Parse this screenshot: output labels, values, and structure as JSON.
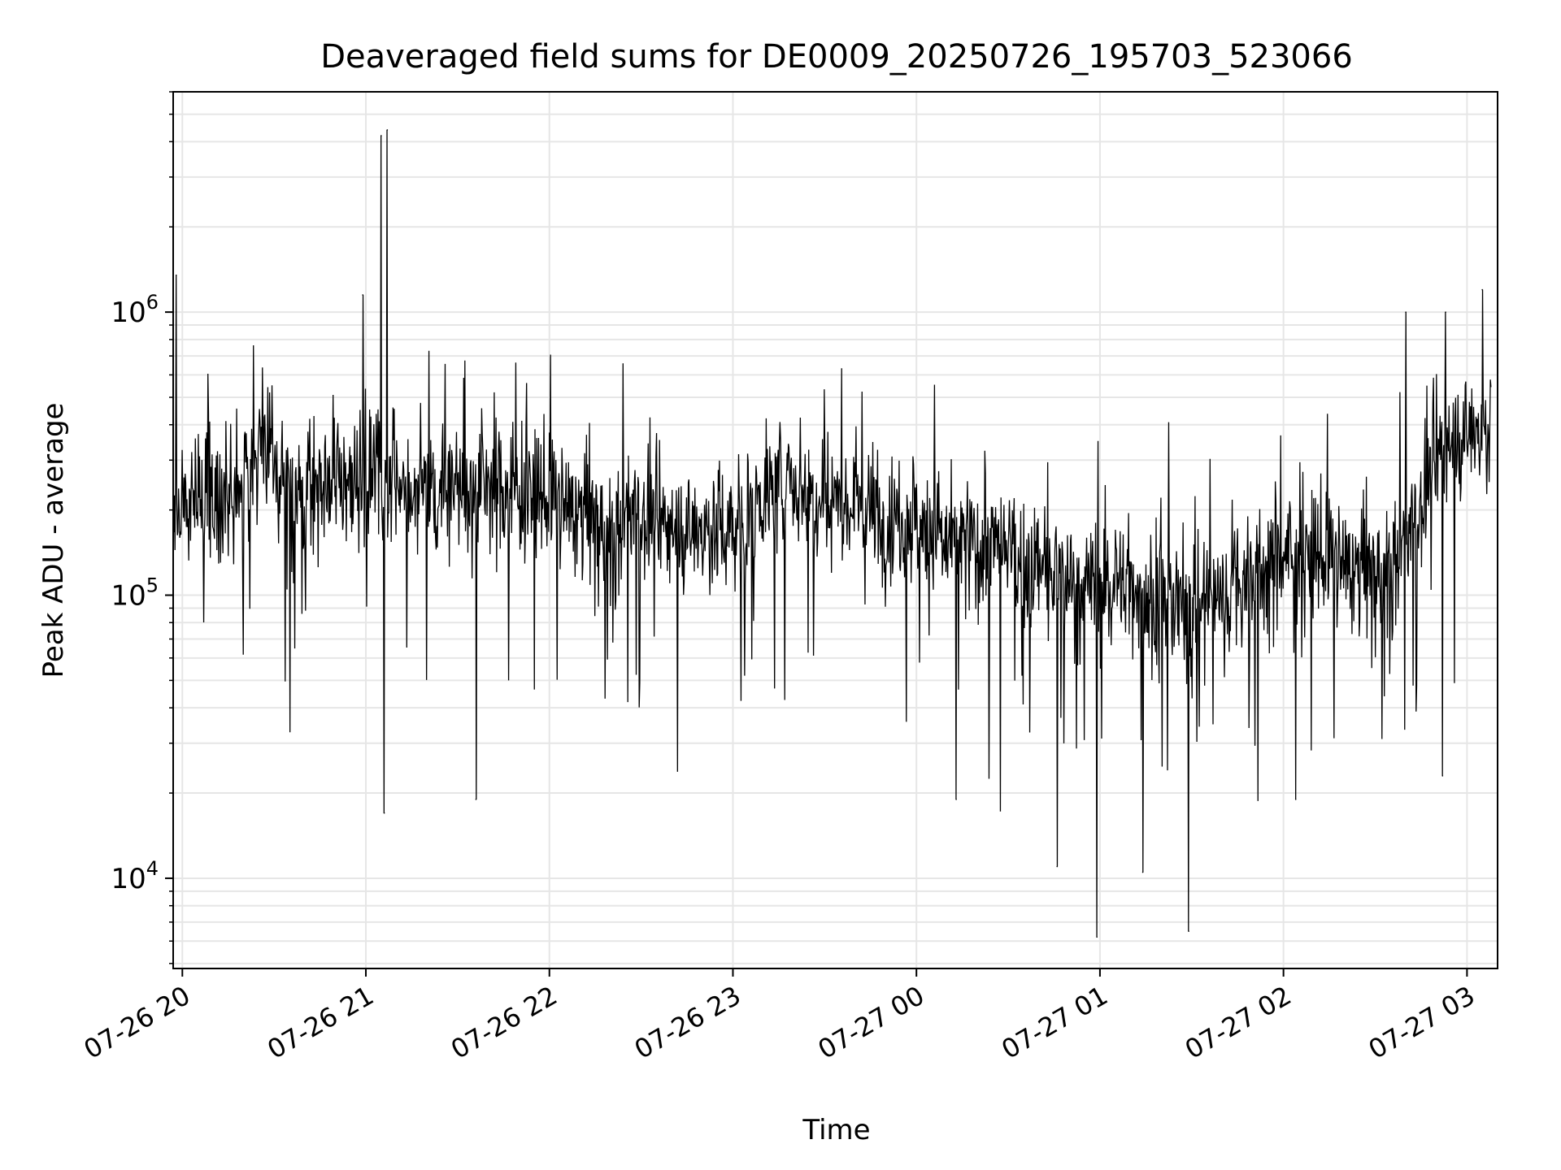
{
  "chart_data": {
    "type": "line",
    "title": "Deaveraged field sums for DE0009_20250726_195703_523066",
    "xlabel": "Time",
    "ylabel": "Peak ADU - average",
    "yscale": "log",
    "ylim": [
      4800,
      6000000
    ],
    "xlim": [
      "2025-07-26T19:57:00",
      "2025-07-27T03:10:00"
    ],
    "grid": true,
    "line_color": "#000000",
    "grid_color": "#e6e6e6",
    "x_ticks": [
      {
        "value": "2025-07-26T20:00:00",
        "label": "07-26 20"
      },
      {
        "value": "2025-07-26T21:00:00",
        "label": "07-26 21"
      },
      {
        "value": "2025-07-26T22:00:00",
        "label": "07-26 22"
      },
      {
        "value": "2025-07-26T23:00:00",
        "label": "07-26 23"
      },
      {
        "value": "2025-07-27T00:00:00",
        "label": "07-27 00"
      },
      {
        "value": "2025-07-27T01:00:00",
        "label": "07-27 01"
      },
      {
        "value": "2025-07-27T02:00:00",
        "label": "07-27 02"
      },
      {
        "value": "2025-07-27T03:00:00",
        "label": "07-27 03"
      }
    ],
    "y_ticks": [
      {
        "value": 10000,
        "base": "10",
        "exp": "4"
      },
      {
        "value": 100000,
        "base": "10",
        "exp": "5"
      },
      {
        "value": 1000000,
        "base": "10",
        "exp": "6"
      }
    ],
    "series": [
      {
        "x": [
          "2025-07-26T19:57:00",
          "2025-07-26T20:05:00",
          "2025-07-26T20:10:00",
          "2025-07-26T20:15:00",
          "2025-07-26T20:20:00",
          "2025-07-26T20:25:00",
          "2025-07-26T20:30:00",
          "2025-07-26T20:35:00",
          "2025-07-26T20:40:00",
          "2025-07-26T20:45:00",
          "2025-07-26T20:50:00",
          "2025-07-26T20:55:00",
          "2025-07-26T21:00:00",
          "2025-07-26T21:05:00",
          "2025-07-26T21:10:00",
          "2025-07-26T21:15:00",
          "2025-07-26T21:20:00",
          "2025-07-26T21:25:00",
          "2025-07-26T21:30:00",
          "2025-07-26T21:35:00",
          "2025-07-26T21:40:00",
          "2025-07-26T21:45:00",
          "2025-07-26T21:50:00",
          "2025-07-26T21:55:00",
          "2025-07-26T22:00:00",
          "2025-07-26T22:10:00",
          "2025-07-26T22:20:00",
          "2025-07-26T22:30:00",
          "2025-07-26T22:40:00",
          "2025-07-26T22:50:00",
          "2025-07-26T23:00:00",
          "2025-07-26T23:10:00",
          "2025-07-26T23:20:00",
          "2025-07-26T23:30:00",
          "2025-07-26T23:40:00",
          "2025-07-26T23:50:00",
          "2025-07-27T00:00:00",
          "2025-07-27T00:10:00",
          "2025-07-27T00:20:00",
          "2025-07-27T00:30:00",
          "2025-07-27T00:40:00",
          "2025-07-27T00:50:00",
          "2025-07-27T01:00:00",
          "2025-07-27T01:10:00",
          "2025-07-27T01:20:00",
          "2025-07-27T01:30:00",
          "2025-07-27T01:40:00",
          "2025-07-27T01:50:00",
          "2025-07-27T02:00:00",
          "2025-07-27T02:10:00",
          "2025-07-27T02:20:00",
          "2025-07-27T02:30:00",
          "2025-07-27T02:40:00",
          "2025-07-27T02:50:00",
          "2025-07-27T03:00:00",
          "2025-07-27T03:10:00"
        ],
        "y": [
          200000,
          230000,
          250000,
          220000,
          230000,
          340000,
          280000,
          230000,
          220000,
          260000,
          250000,
          260000,
          270000,
          260000,
          230000,
          240000,
          240000,
          260000,
          250000,
          240000,
          250000,
          240000,
          240000,
          230000,
          220000,
          200000,
          170000,
          200000,
          170000,
          170000,
          170000,
          230000,
          250000,
          230000,
          220000,
          190000,
          190000,
          150000,
          150000,
          140000,
          120000,
          110000,
          110000,
          110000,
          90000,
          90000,
          100000,
          120000,
          140000,
          140000,
          130000,
          120000,
          150000,
          310000,
          380000,
          390000
        ],
        "spikes": [
          {
            "x": "2025-07-26T21:05:00",
            "y": 4200000
          },
          {
            "x": "2025-07-26T21:07:00",
            "y": 4400000
          },
          {
            "x": "2025-07-26T21:06:00",
            "y": 17000
          },
          {
            "x": "2025-07-26T20:59:00",
            "y": 1150000
          },
          {
            "x": "2025-07-26T19:58:00",
            "y": 1350000
          },
          {
            "x": "2025-07-26T21:36:00",
            "y": 19000
          },
          {
            "x": "2025-07-27T00:46:00",
            "y": 11000
          },
          {
            "x": "2025-07-27T00:59:00",
            "y": 6200
          },
          {
            "x": "2025-07-27T01:14:00",
            "y": 10500
          },
          {
            "x": "2025-07-27T01:29:00",
            "y": 6500
          },
          {
            "x": "2025-07-27T00:13:00",
            "y": 19000
          },
          {
            "x": "2025-07-27T02:04:00",
            "y": 19000
          },
          {
            "x": "2025-07-27T02:52:00",
            "y": 23000
          },
          {
            "x": "2025-07-27T03:05:00",
            "y": 1200000
          },
          {
            "x": "2025-07-27T02:53:00",
            "y": 1000000
          },
          {
            "x": "2025-07-27T02:40:00",
            "y": 1000000
          }
        ]
      }
    ]
  }
}
